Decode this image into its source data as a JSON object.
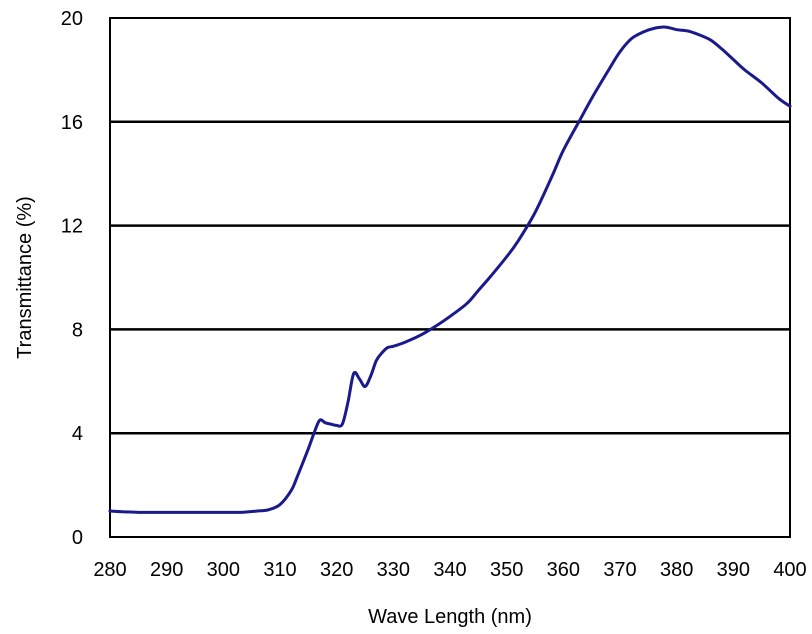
{
  "chart_data": {
    "type": "line",
    "title": "",
    "xlabel": "Wave Length (nm)",
    "ylabel": "Transmittance  (%)",
    "xlim": [
      280,
      400
    ],
    "ylim": [
      0,
      20
    ],
    "xticks": [
      "280",
      "290",
      "300",
      "310",
      "320",
      "330",
      "340",
      "350",
      "360",
      "370",
      "380",
      "390",
      "400"
    ],
    "yticks": [
      "0",
      "4",
      "8",
      "12",
      "16",
      "20"
    ],
    "grid": "horizontal",
    "legend": "none",
    "colors": {
      "line": "#1a1a8c",
      "grid": "#000000",
      "frame": "#000000"
    },
    "series": [
      {
        "x": [
          280,
          285,
          290,
          295,
          300,
          303,
          306,
          308,
          310,
          312,
          313,
          315,
          316,
          317,
          318,
          319,
          320,
          321,
          322,
          323,
          324,
          325,
          326,
          327,
          328,
          329,
          330,
          332,
          335,
          338,
          340,
          343,
          345,
          347,
          350,
          352,
          355,
          358,
          360,
          363,
          365,
          368,
          370,
          372,
          374,
          376,
          378,
          380,
          382,
          384,
          386,
          388,
          390,
          392,
          395,
          398,
          400
        ],
        "y": [
          1.0,
          0.95,
          0.95,
          0.95,
          0.95,
          0.95,
          1.0,
          1.05,
          1.25,
          1.8,
          2.3,
          3.4,
          4.0,
          4.5,
          4.4,
          4.35,
          4.3,
          4.35,
          5.2,
          6.3,
          6.1,
          5.8,
          6.2,
          6.8,
          7.1,
          7.3,
          7.35,
          7.5,
          7.8,
          8.2,
          8.5,
          9.0,
          9.5,
          10.0,
          10.8,
          11.4,
          12.5,
          13.9,
          14.9,
          16.1,
          16.9,
          18.0,
          18.7,
          19.2,
          19.45,
          19.6,
          19.65,
          19.55,
          19.5,
          19.35,
          19.15,
          18.8,
          18.4,
          18.0,
          17.5,
          16.9,
          16.6
        ]
      }
    ]
  }
}
